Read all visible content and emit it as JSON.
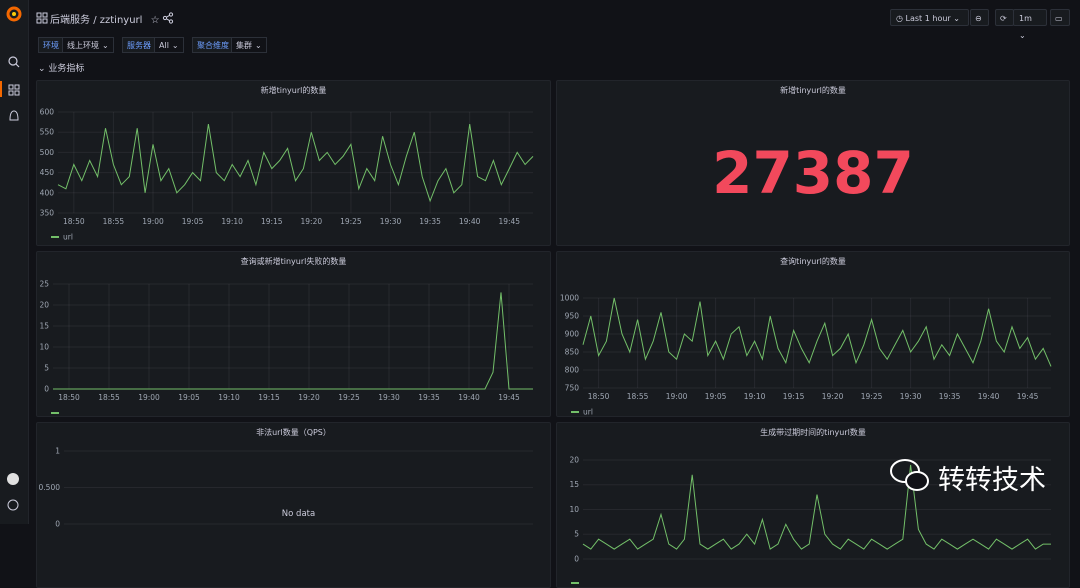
{
  "header": {
    "folder": "后端服务",
    "separator": "/",
    "dashboard": "zztinyurl",
    "time_range": "Last 1 hour",
    "refresh": "1m"
  },
  "variables": [
    {
      "label": "环境",
      "value": "线上环境"
    },
    {
      "label": "服务器",
      "value": "All"
    },
    {
      "label": "聚合维度",
      "value": "集群"
    }
  ],
  "row_title": "业务指标",
  "panels": [
    {
      "title": "新增tinyurl的数量",
      "chart": {
        "type": "line",
        "xlim": [
          0,
          60
        ],
        "xticks": [
          {
            "value": 2,
            "label": "18:50"
          },
          {
            "value": 7,
            "label": "18:55"
          },
          {
            "value": 12,
            "label": "19:00"
          },
          {
            "value": 17,
            "label": "19:05"
          },
          {
            "value": 22,
            "label": "19:10"
          },
          {
            "value": 27,
            "label": "19:15"
          },
          {
            "value": 32,
            "label": "19:20"
          },
          {
            "value": 37,
            "label": "19:25"
          },
          {
            "value": 42,
            "label": "19:30"
          },
          {
            "value": 47,
            "label": "19:35"
          },
          {
            "value": 52,
            "label": "19:40"
          },
          {
            "value": 57,
            "label": "19:45"
          }
        ],
        "ylim": [
          350,
          600
        ],
        "yticks": [
          350,
          400,
          450,
          500,
          550,
          600
        ],
        "grid": true,
        "series": [
          {
            "name": "url",
            "color": "#73bf69",
            "values": [
              420,
              410,
              470,
              430,
              480,
              440,
              560,
              470,
              420,
              440,
              560,
              400,
              520,
              430,
              460,
              400,
              420,
              450,
              430,
              570,
              450,
              430,
              470,
              440,
              480,
              420,
              500,
              460,
              480,
              510,
              430,
              460,
              550,
              480,
              500,
              470,
              490,
              520,
              410,
              460,
              430,
              540,
              470,
              420,
              490,
              550,
              440,
              380,
              430,
              460,
              400,
              420,
              570,
              440,
              430,
              480,
              420,
              460,
              500,
              470,
              490
            ]
          }
        ]
      }
    },
    {
      "title": "新增tinyurl的数量",
      "stat": "27387",
      "stat_color": "#f2495c"
    },
    {
      "title": "查询或新增tinyurl失败的数量",
      "chart": {
        "type": "line",
        "xlim": [
          0,
          60
        ],
        "xticks": [
          {
            "value": 2,
            "label": "18:50"
          },
          {
            "value": 7,
            "label": "18:55"
          },
          {
            "value": 12,
            "label": "19:00"
          },
          {
            "value": 17,
            "label": "19:05"
          },
          {
            "value": 22,
            "label": "19:10"
          },
          {
            "value": 27,
            "label": "19:15"
          },
          {
            "value": 32,
            "label": "19:20"
          },
          {
            "value": 37,
            "label": "19:25"
          },
          {
            "value": 42,
            "label": "19:30"
          },
          {
            "value": 47,
            "label": "19:35"
          },
          {
            "value": 52,
            "label": "19:40"
          },
          {
            "value": 57,
            "label": "19:45"
          }
        ],
        "ylim": [
          0,
          25
        ],
        "yticks": [
          0,
          5,
          10,
          15,
          20,
          25
        ],
        "grid": true,
        "series": [
          {
            "color": "#73bf69",
            "values": [
              0,
              0,
              0,
              0,
              0,
              0,
              0,
              0,
              0,
              0,
              0,
              0,
              0,
              0,
              0,
              0,
              0,
              0,
              0,
              0,
              0,
              0,
              0,
              0,
              0,
              0,
              0,
              0,
              0,
              0,
              0,
              0,
              0,
              0,
              0,
              0,
              0,
              0,
              0,
              0,
              0,
              0,
              0,
              0,
              0,
              0,
              0,
              0,
              0,
              0,
              0,
              0,
              0,
              0,
              0,
              4,
              23,
              0,
              0,
              0,
              0
            ]
          }
        ]
      }
    },
    {
      "title": "查询tinyurl的数量",
      "chart": {
        "type": "line",
        "xlim": [
          0,
          60
        ],
        "xticks": [
          {
            "value": 2,
            "label": "18:50"
          },
          {
            "value": 7,
            "label": "18:55"
          },
          {
            "value": 12,
            "label": "19:00"
          },
          {
            "value": 17,
            "label": "19:05"
          },
          {
            "value": 22,
            "label": "19:10"
          },
          {
            "value": 27,
            "label": "19:15"
          },
          {
            "value": 32,
            "label": "19:20"
          },
          {
            "value": 37,
            "label": "19:25"
          },
          {
            "value": 42,
            "label": "19:30"
          },
          {
            "value": 47,
            "label": "19:35"
          },
          {
            "value": 52,
            "label": "19:40"
          },
          {
            "value": 57,
            "label": "19:45"
          }
        ],
        "ylim": [
          750,
          1000
        ],
        "yticks": [
          750,
          800,
          850,
          900,
          950,
          1000
        ],
        "grid": true,
        "series": [
          {
            "name": "url",
            "color": "#73bf69",
            "values": [
              870,
              950,
              840,
              880,
              1000,
              900,
              850,
              940,
              830,
              880,
              960,
              850,
              830,
              900,
              880,
              990,
              840,
              880,
              830,
              900,
              920,
              840,
              880,
              830,
              950,
              860,
              820,
              910,
              860,
              820,
              880,
              930,
              840,
              860,
              900,
              820,
              870,
              940,
              860,
              830,
              870,
              910,
              850,
              880,
              920,
              830,
              870,
              840,
              900,
              860,
              820,
              880,
              970,
              880,
              850,
              920,
              860,
              890,
              830,
              860,
              810
            ]
          }
        ]
      }
    },
    {
      "title": "非法url数量（QPS）",
      "chart": {
        "type": "line",
        "ylim": [
          0,
          1
        ],
        "yticks": [
          0,
          {
            "value": 0.5,
            "label": "0.500"
          },
          1
        ],
        "grid": true,
        "series": [],
        "no_data_text": "No data"
      }
    },
    {
      "title": "生成带过期时间的tinyurl数量",
      "chart": {
        "type": "line",
        "xlim": [
          0,
          60
        ],
        "ylim": [
          0,
          21
        ],
        "yticks": [
          0,
          5,
          10,
          15,
          20
        ],
        "grid": true,
        "series": [
          {
            "color": "#73bf69",
            "values": [
              3,
              2,
              4,
              3,
              2,
              3,
              4,
              2,
              3,
              4,
              9,
              3,
              2,
              4,
              17,
              3,
              2,
              3,
              4,
              2,
              3,
              5,
              3,
              8,
              2,
              3,
              7,
              4,
              2,
              3,
              13,
              5,
              3,
              2,
              4,
              3,
              2,
              4,
              3,
              2,
              3,
              4,
              19,
              6,
              3,
              2,
              4,
              3,
              2,
              3,
              4,
              3,
              2,
              4,
              3,
              2,
              3,
              4,
              2,
              3,
              3
            ]
          }
        ]
      }
    }
  ],
  "watermark": "转转技术"
}
